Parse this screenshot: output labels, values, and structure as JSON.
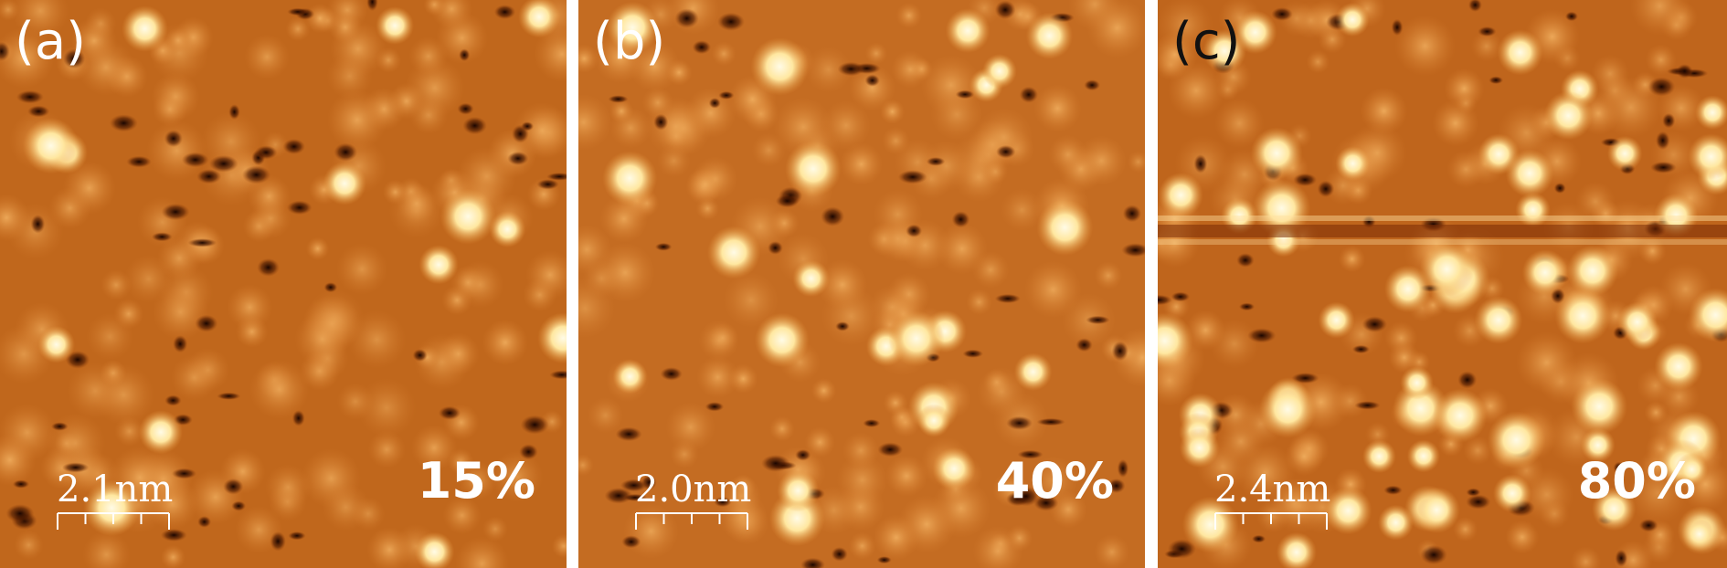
{
  "panels": [
    {
      "label": "(a)",
      "scale": "2.1nm",
      "coverage": "15%"
    },
    {
      "label": "(b)",
      "scale": "2.0nm",
      "coverage": "40%"
    },
    {
      "label": "(c)",
      "scale": "2.4nm",
      "coverage": "80%"
    }
  ],
  "colors": {
    "background": "#c26a20",
    "bright": "#fff4cc",
    "dark": "#1a0500",
    "divider": "#ffffff"
  }
}
